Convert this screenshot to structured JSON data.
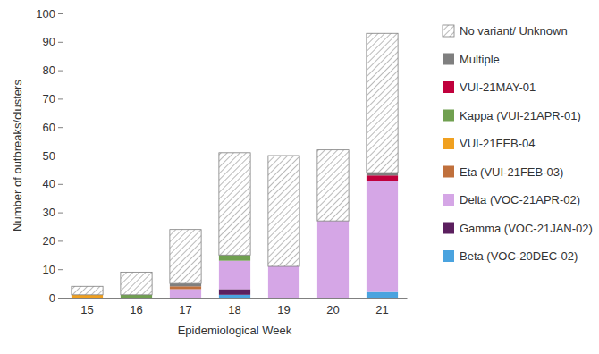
{
  "chart_data": {
    "type": "bar",
    "stacked": true,
    "x_label": "Epidemiological Week",
    "y_label": "Number of outbreaks/clusters",
    "categories": [
      "15",
      "16",
      "17",
      "18",
      "19",
      "20",
      "21"
    ],
    "ylim": [
      0,
      100
    ],
    "yticks": [
      0,
      10,
      20,
      30,
      40,
      50,
      60,
      70,
      80,
      90,
      100
    ],
    "grid": false,
    "legend": "right",
    "series": [
      {
        "name": "Beta (VOC-20DEC-02)",
        "color": "#4aa3df",
        "values": [
          0,
          0,
          0,
          1,
          0,
          0,
          2
        ]
      },
      {
        "name": "Gamma (VOC-21JAN-02)",
        "color": "#5b1f5e",
        "values": [
          0,
          0,
          0,
          2,
          0,
          0,
          0
        ]
      },
      {
        "name": "Delta (VOC-21APR-02)",
        "color": "#d5a6e6",
        "values": [
          0,
          0,
          3,
          10,
          11,
          27,
          39
        ]
      },
      {
        "name": "Eta (VUI-21FEB-03)",
        "color": "#c0703c",
        "values": [
          0,
          0,
          1,
          0,
          0,
          0,
          0
        ]
      },
      {
        "name": "VUI-21FEB-04",
        "color": "#f0a020",
        "values": [
          1,
          0,
          0,
          0,
          0,
          0,
          0
        ]
      },
      {
        "name": "Kappa (VUI-21APR-01)",
        "color": "#70a050",
        "values": [
          0,
          1,
          0,
          2,
          0,
          0,
          0
        ]
      },
      {
        "name": "VUI-21MAY-01",
        "color": "#c0003c",
        "values": [
          0,
          0,
          0,
          0,
          0,
          0,
          2
        ]
      },
      {
        "name": "Multiple",
        "color": "#7f7f7f",
        "values": [
          0,
          0,
          1,
          0,
          0,
          0,
          1
        ]
      },
      {
        "name": "No variant/ Unknown",
        "color": "#8c8c8c",
        "line_style": "hatched",
        "values": [
          3,
          8,
          19,
          36,
          39,
          25,
          49
        ]
      }
    ]
  }
}
